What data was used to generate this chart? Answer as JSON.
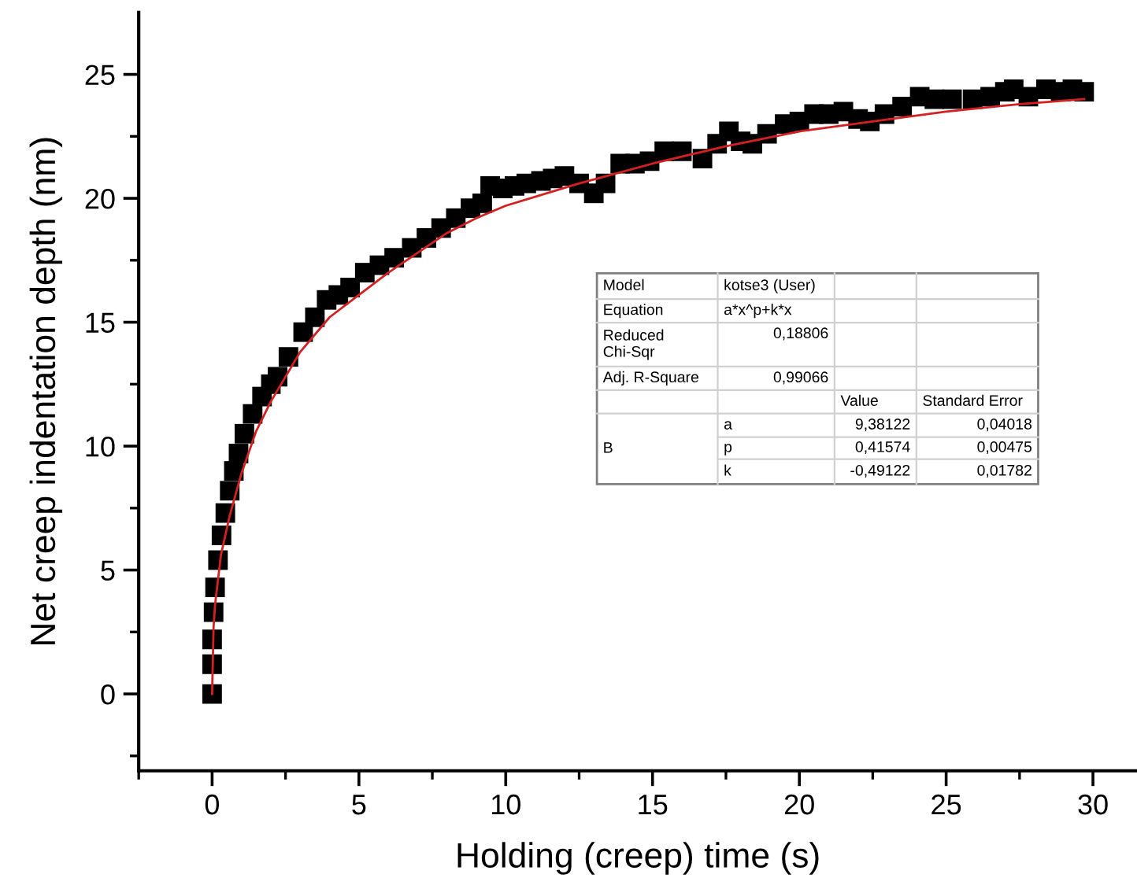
{
  "chart_data": {
    "type": "scatter",
    "xlabel": "Holding (creep) time (s)",
    "ylabel": "Net creep indentation depth (nm)",
    "xlim": [
      -2.5,
      31.5
    ],
    "ylim": [
      -3.1,
      27.5
    ],
    "xticks": [
      {
        "value": -2.5,
        "label": null
      },
      0,
      {
        "value": 2.5,
        "label": null
      },
      5,
      {
        "value": 7.5,
        "label": null
      },
      10,
      {
        "value": 12.5,
        "label": null
      },
      15,
      {
        "value": 17.5,
        "label": null
      },
      20,
      {
        "value": 22.5,
        "label": null
      },
      25,
      {
        "value": 27.5,
        "label": null
      },
      30
    ],
    "yticks": [
      {
        "value": -2.5,
        "label": null
      },
      0,
      {
        "value": 2.5,
        "label": null
      },
      5,
      {
        "value": 7.5,
        "label": null
      },
      10,
      {
        "value": 12.5,
        "label": null
      },
      15,
      {
        "value": 17.5,
        "label": null
      },
      20,
      {
        "value": 22.5,
        "label": null
      },
      25
    ],
    "grid": false,
    "series": [
      {
        "marker": "square",
        "color": "#000000",
        "x": [
          0,
          0,
          0,
          0.05,
          0.1,
          0.2,
          0.32,
          0.45,
          0.6,
          0.74,
          0.9,
          1.1,
          1.38,
          1.7,
          2.0,
          2.23,
          2.6,
          3.1,
          3.5,
          3.9,
          4.3,
          4.7,
          5.2,
          5.7,
          6.2,
          6.8,
          7.3,
          7.8,
          8.3,
          8.8,
          9.2,
          9.47,
          9.9,
          10.3,
          10.7,
          11.2,
          11.6,
          12.0,
          12.5,
          13.0,
          13.4,
          13.9,
          14.4,
          14.9,
          15.4,
          16.0,
          16.7,
          17.2,
          17.6,
          18.0,
          18.4,
          18.9,
          19.5,
          20.0,
          20.5,
          21.0,
          21.5,
          22.0,
          22.4,
          22.9,
          23.5,
          24.1,
          24.6,
          25.2,
          25.9,
          26.5,
          27.0,
          27.3,
          27.8,
          28.4,
          28.9,
          29.3,
          29.7
        ],
        "values": [
          0,
          1.2,
          2.2,
          3.3,
          4.3,
          5.4,
          6.4,
          7.3,
          8.2,
          9.0,
          9.7,
          10.5,
          11.3,
          12.0,
          12.5,
          12.8,
          13.6,
          14.6,
          15.2,
          15.9,
          16.1,
          16.4,
          17.0,
          17.3,
          17.6,
          18.0,
          18.4,
          18.8,
          19.2,
          19.6,
          19.8,
          20.5,
          20.4,
          20.5,
          20.6,
          20.7,
          20.8,
          20.9,
          20.6,
          20.2,
          20.6,
          21.4,
          21.4,
          21.5,
          21.9,
          21.9,
          21.6,
          22.2,
          22.7,
          22.3,
          22.2,
          22.6,
          23.0,
          23.1,
          23.4,
          23.4,
          23.5,
          23.2,
          23.1,
          23.4,
          23.7,
          24.1,
          24.0,
          24.0,
          24.0,
          24.1,
          24.3,
          24.4,
          24.1,
          24.4,
          24.3,
          24.4,
          24.3
        ]
      },
      {
        "type": "line",
        "color": "#d62020",
        "line_style": "solid",
        "x": [
          0,
          0.05,
          0.1,
          0.3,
          0.6,
          1,
          1.5,
          2,
          3,
          4,
          5,
          6,
          7,
          8,
          9,
          10,
          12.5,
          15,
          17.5,
          20,
          22.5,
          25,
          27.5,
          29.7
        ],
        "values": [
          0,
          2.7,
          3.6,
          5.6,
          7.2,
          8.9,
          10.6,
          11.8,
          13.8,
          15.2,
          16.1,
          17.0,
          17.8,
          18.6,
          19.2,
          19.7,
          20.6,
          21.4,
          22.1,
          22.7,
          23.1,
          23.5,
          23.8,
          24.0
        ]
      }
    ],
    "annotations": [
      "Model",
      "kotse3 (User)",
      "Equation",
      "a*x^p+k*x",
      "Reduced\nChi-Sqr",
      "0,18806",
      "Adj. R-Square",
      "0,99066",
      "Value",
      "Standard Error",
      "B",
      "a",
      "9,38122",
      "0,04018",
      "p",
      "0,41574",
      "0,00475",
      "k",
      "-0,49122",
      "0,01782"
    ]
  }
}
